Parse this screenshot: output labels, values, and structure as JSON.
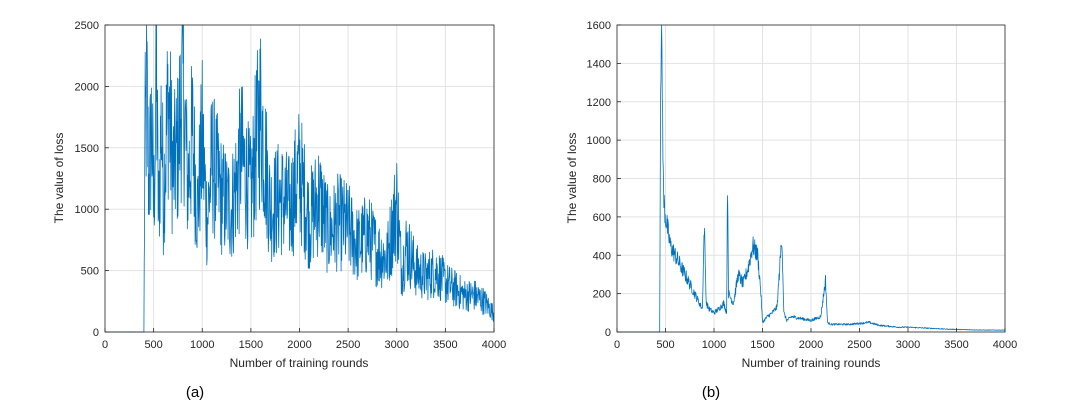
{
  "colors": {
    "line": "#0072bd",
    "grid": "#e3e3e3",
    "axis": "#262626"
  },
  "chart_data": [
    {
      "type": "line",
      "caption": "(a)",
      "xlabel": "Number of training rounds",
      "ylabel": "The value of loss",
      "xlim": [
        0,
        4000
      ],
      "ylim": [
        0,
        2500
      ],
      "xticks": [
        0,
        500,
        1000,
        1500,
        2000,
        2500,
        3000,
        3500,
        4000
      ],
      "yticks": [
        0,
        500,
        1000,
        1500,
        2000,
        2500
      ],
      "grid": true,
      "series": [
        {
          "x": [
            0,
            100,
            200,
            300,
            400,
            410,
            430,
            450,
            480,
            500,
            530,
            550,
            580,
            600,
            650,
            700,
            750,
            800,
            850,
            900,
            950,
            1000,
            1050,
            1100,
            1200,
            1300,
            1400,
            1500,
            1550,
            1600,
            1700,
            1800,
            1900,
            2000,
            2100,
            2200,
            2300,
            2400,
            2500,
            2600,
            2700,
            2800,
            2900,
            3000,
            3050,
            3100,
            3200,
            3300,
            3400,
            3500,
            3600,
            3700,
            3800,
            3900,
            4000
          ],
          "y": [
            0,
            0,
            0,
            0,
            0,
            1500,
            1950,
            1200,
            1700,
            1000,
            2050,
            900,
            1800,
            1100,
            1900,
            1300,
            1500,
            2080,
            1200,
            1600,
            1000,
            1550,
            900,
            1400,
            1100,
            1000,
            1450,
            1100,
            1500,
            1800,
            1000,
            1100,
            1000,
            1300,
            900,
            1100,
            800,
            900,
            850,
            700,
            800,
            650,
            600,
            1050,
            500,
            700,
            500,
            450,
            500,
            400,
            350,
            300,
            300,
            250,
            150
          ]
        }
      ]
    },
    {
      "type": "line",
      "caption": "(b)",
      "xlabel": "Number of training rounds",
      "ylabel": "The value of loss",
      "xlim": [
        0,
        4000
      ],
      "ylim": [
        0,
        1600
      ],
      "xticks": [
        0,
        500,
        1000,
        1500,
        2000,
        2500,
        3000,
        3500,
        4000
      ],
      "yticks": [
        0,
        200,
        400,
        600,
        800,
        1000,
        1200,
        1400,
        1600
      ],
      "grid": true,
      "series": [
        {
          "x": [
            0,
            100,
            200,
            300,
            400,
            440,
            450,
            460,
            470,
            480,
            500,
            550,
            600,
            700,
            800,
            880,
            900,
            920,
            950,
            1000,
            1050,
            1100,
            1130,
            1140,
            1150,
            1200,
            1250,
            1300,
            1350,
            1400,
            1450,
            1480,
            1500,
            1550,
            1600,
            1650,
            1700,
            1720,
            1750,
            1800,
            1900,
            2000,
            2100,
            2150,
            2170,
            2200,
            2300,
            2400,
            2500,
            2600,
            2700,
            2800,
            2900,
            3000,
            3200,
            3400,
            3600,
            3800,
            4000
          ],
          "y": [
            0,
            0,
            0,
            0,
            0,
            0,
            1400,
            1530,
            1150,
            700,
            600,
            450,
            400,
            300,
            200,
            120,
            560,
            150,
            120,
            100,
            120,
            150,
            100,
            800,
            200,
            150,
            300,
            250,
            330,
            450,
            400,
            230,
            50,
            80,
            100,
            130,
            500,
            100,
            60,
            80,
            70,
            60,
            80,
            270,
            50,
            40,
            40,
            40,
            45,
            50,
            35,
            30,
            25,
            25,
            20,
            15,
            12,
            10,
            10
          ]
        }
      ]
    }
  ]
}
